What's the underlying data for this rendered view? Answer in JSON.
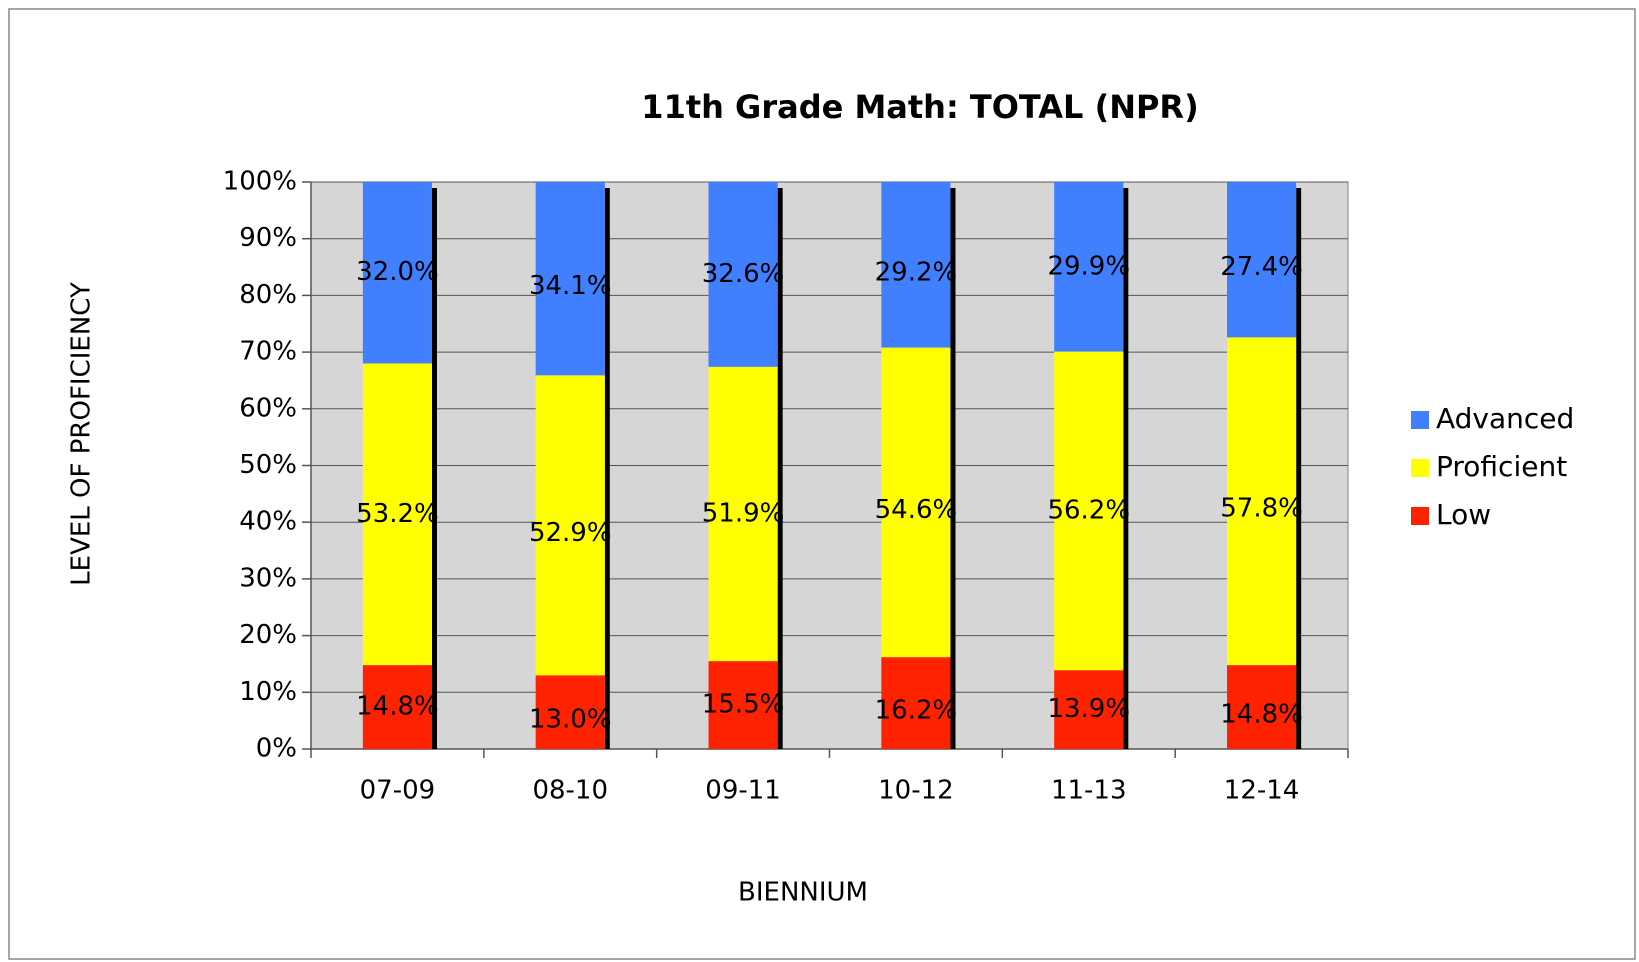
{
  "chart_data": {
    "type": "stacked_bar",
    "title": "11th Grade Math:  TOTAL (NPR)",
    "x_label": "BIENNIUM",
    "y_label": "LEVEL OF PROFICIENCY",
    "categories": [
      "07-09",
      "08-10",
      "09-11",
      "10-12",
      "11-13",
      "12-14"
    ],
    "series": [
      {
        "name": "Low",
        "color": "#ff2200",
        "values": [
          14.8,
          13.0,
          15.5,
          16.2,
          13.9,
          14.8
        ],
        "value_labels": [
          "14.8%",
          "13.0%",
          "15.5%",
          "16.2%",
          "13.9%",
          "14.8%"
        ]
      },
      {
        "name": "Proficient",
        "color": "#ffff00",
        "values": [
          53.2,
          52.9,
          51.9,
          54.6,
          56.2,
          57.8
        ],
        "value_labels": [
          "53.2%",
          "52.9%",
          "51.9%",
          "54.6%",
          "56.2%",
          "57.8%"
        ]
      },
      {
        "name": "Advanced",
        "color": "#4080ff",
        "values": [
          32.0,
          34.1,
          32.6,
          29.2,
          29.9,
          27.4
        ],
        "value_labels": [
          "32.0%",
          "34.1%",
          "32.6%",
          "29.2%",
          "29.9%",
          "27.4%"
        ]
      }
    ],
    "ylim": [
      0,
      100
    ],
    "yticks": [
      {
        "value": 0,
        "label": "0%"
      },
      {
        "value": 10,
        "label": "10%"
      },
      {
        "value": 20,
        "label": "20%"
      },
      {
        "value": 30,
        "label": "30%"
      },
      {
        "value": 40,
        "label": "40%"
      },
      {
        "value": 50,
        "label": "50%"
      },
      {
        "value": 60,
        "label": "60%"
      },
      {
        "value": 70,
        "label": "70%"
      },
      {
        "value": 80,
        "label": "80%"
      },
      {
        "value": 90,
        "label": "90%"
      },
      {
        "value": 100,
        "label": "100%"
      }
    ],
    "grid": true,
    "legend": "right"
  }
}
